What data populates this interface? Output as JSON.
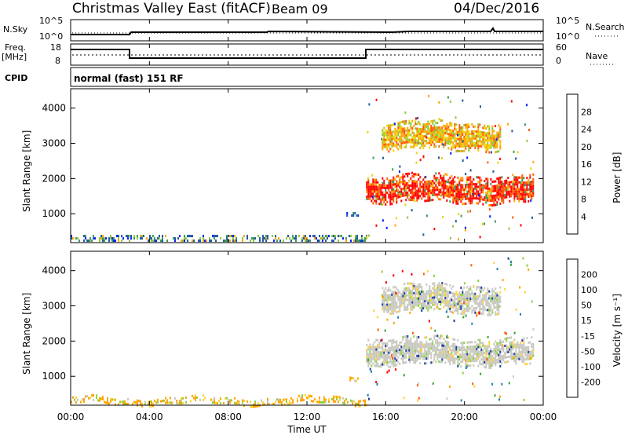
{
  "header": {
    "title": "Christmas Valley East (fitACF)",
    "beam": "Beam 09",
    "date": "04/Dec/2016"
  },
  "strip_nsky": {
    "left_label": "N.Sky",
    "left_ticks": [
      "10^5",
      "10^0"
    ],
    "right_ticks": [
      "10^5",
      "10^0"
    ],
    "right_label": "N.Search"
  },
  "strip_freq": {
    "left_label_line1": "Freq.",
    "left_label_line2": "[MHz]",
    "left_ticks": [
      "18",
      "8"
    ],
    "right_ticks": [
      "60",
      "0"
    ],
    "right_label": "Nave"
  },
  "cpid": {
    "label": "CPID",
    "text": "normal (fast) 151 RF"
  },
  "x_axis": {
    "ticks": [
      "00:00",
      "04:00",
      "08:00",
      "12:00",
      "16:00",
      "20:00",
      "00:00"
    ],
    "label": "Time UT"
  },
  "chart_data": [
    {
      "type": "heatmap",
      "name": "power",
      "ylabel": "Slant Range [km]",
      "ylim": [
        180,
        4550
      ],
      "yticks": [
        "1000",
        "2000",
        "3000",
        "4000"
      ],
      "xlim_hours": [
        0,
        24
      ],
      "colorbar": {
        "label": "Power [dB]",
        "ticks": [
          "28",
          "24",
          "20",
          "16",
          "12",
          "8",
          "4"
        ],
        "colors": [
          "#ff0000",
          "#ff5a00",
          "#ffa500",
          "#e8d700",
          "#8cc83c",
          "#3c9a5a",
          "#1e5aa0",
          "#0a1eff"
        ]
      },
      "regions": [
        {
          "t0": 0.0,
          "t1": 15.0,
          "r0": 200,
          "r1": 400,
          "level": "low",
          "note": "ground scatter band"
        },
        {
          "t0": 14.0,
          "t1": 14.7,
          "r0": 950,
          "r1": 1050,
          "level": "low"
        },
        {
          "t0": 15.0,
          "t1": 23.5,
          "r0": 1300,
          "r1": 2100,
          "level": "high"
        },
        {
          "t0": 15.8,
          "t1": 21.8,
          "r0": 2800,
          "r1": 3600,
          "level": "medium"
        }
      ],
      "grid": false
    },
    {
      "type": "heatmap",
      "name": "velocity",
      "ylabel": "Slant Range [km]",
      "ylim": [
        180,
        4550
      ],
      "yticks": [
        "1000",
        "2000",
        "3000",
        "4000"
      ],
      "xlim_hours": [
        0,
        24
      ],
      "colorbar": {
        "label": "Velocity [m s⁻¹]",
        "ticks": [
          "200",
          "100",
          "50",
          "15",
          "-15",
          "-50",
          "-100",
          "-200"
        ],
        "colors": [
          "#1e3ca0",
          "#1e82b4",
          "#3ca03c",
          "#8cd23c",
          "#c8c8c0",
          "#ffd23c",
          "#ffa500",
          "#ff5a00",
          "#ff0000"
        ]
      },
      "regions": [
        {
          "t0": 0.0,
          "t1": 15.0,
          "r0": 200,
          "r1": 400,
          "level": "slow-negative"
        },
        {
          "t0": 14.0,
          "t1": 14.7,
          "r0": 950,
          "r1": 1050,
          "level": "slow-negative"
        },
        {
          "t0": 15.0,
          "t1": 23.5,
          "r0": 1300,
          "r1": 2100,
          "level": "near-zero"
        },
        {
          "t0": 15.8,
          "t1": 21.8,
          "r0": 2800,
          "r1": 3600,
          "level": "near-zero"
        }
      ],
      "grid": false
    }
  ]
}
